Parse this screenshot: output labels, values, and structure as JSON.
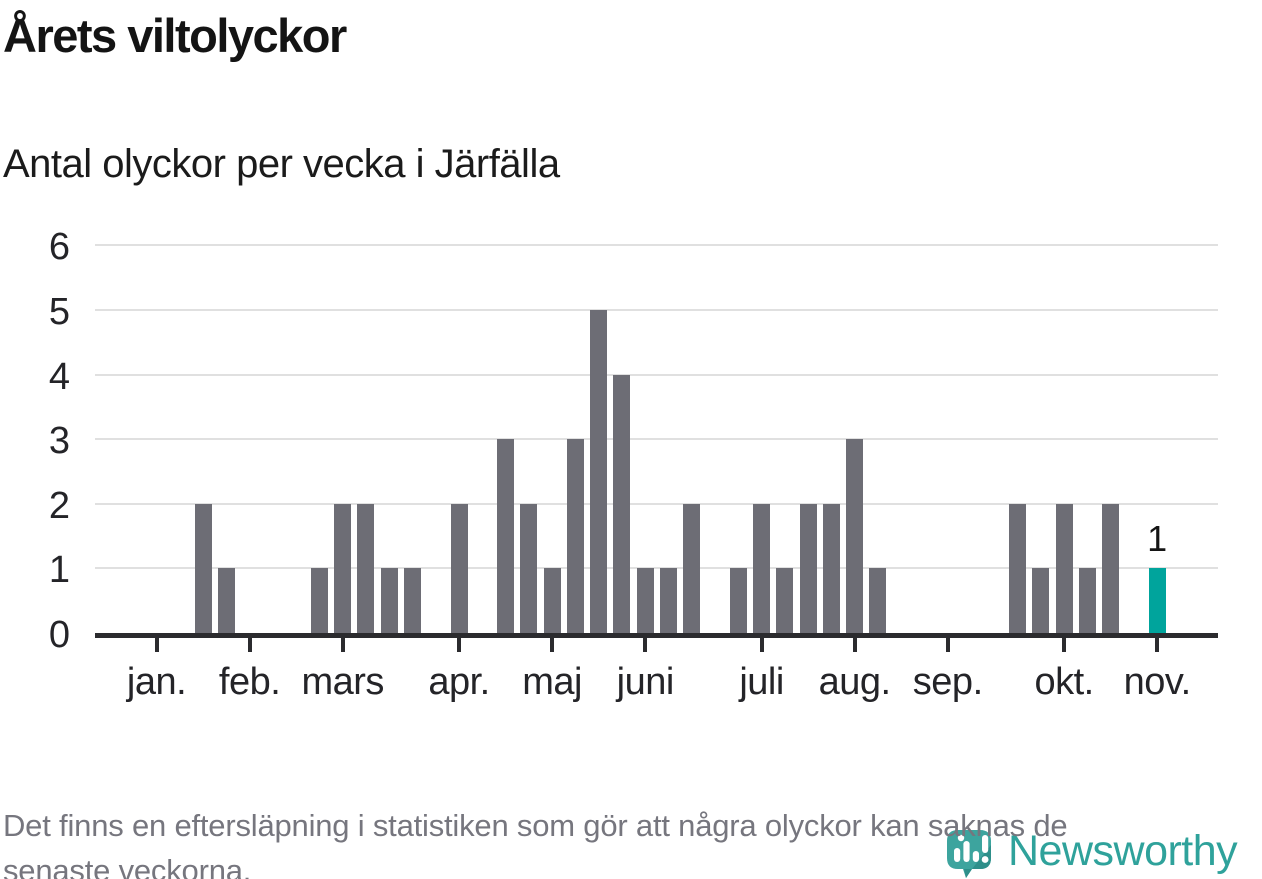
{
  "title": "Årets viltolyckor",
  "subtitle": "Antal olyckor per vecka i Järfälla",
  "footer": {
    "line1": "Det finns en eftersläpning i statistiken som gör att några olyckor kan saknas de",
    "line2": "senaste veckorna."
  },
  "logo": {
    "text": "Newsworthy"
  },
  "colors": {
    "bar": "#6d6d75",
    "accent": "#00a49c",
    "gridline": "#e0e0e0",
    "axis": "#2b2b2e",
    "tick_label": "#242428",
    "footer_text": "#76767e",
    "logo_teal": "#2fa29b",
    "logo_icon_light": "#3da49e",
    "logo_icon_dark": "#2e8f8a"
  },
  "chart_data": {
    "type": "bar",
    "title": "Årets viltolyckor",
    "subtitle": "Antal olyckor per vecka i Järfälla",
    "x_unit": "vecka (weekly bars, jan–nov)",
    "categories_note": "46 consecutive weeks; month ticks mark the listed week slots",
    "x_tick_labels": [
      "jan.",
      "feb.",
      "mars",
      "apr.",
      "maj",
      "juni",
      "juli",
      "aug.",
      "sep.",
      "okt.",
      "nov."
    ],
    "tick_slots": [
      2,
      6,
      10,
      15,
      19,
      23,
      28,
      32,
      36,
      41,
      45
    ],
    "values": [
      0,
      0,
      0,
      0,
      2,
      1,
      0,
      0,
      0,
      1,
      2,
      2,
      1,
      1,
      0,
      2,
      0,
      3,
      2,
      1,
      3,
      5,
      4,
      1,
      1,
      2,
      0,
      1,
      2,
      1,
      2,
      2,
      3,
      1,
      0,
      0,
      0,
      0,
      0,
      2,
      1,
      2,
      1,
      2,
      0,
      1
    ],
    "highlight_index": 45,
    "highlight_label": "1",
    "highlight_value": 1,
    "ylabel": "",
    "xlabel": "",
    "ylim": [
      0,
      6
    ],
    "yticks": [
      0,
      1,
      2,
      3,
      4,
      5,
      6
    ],
    "grid": true,
    "legend": "none"
  }
}
